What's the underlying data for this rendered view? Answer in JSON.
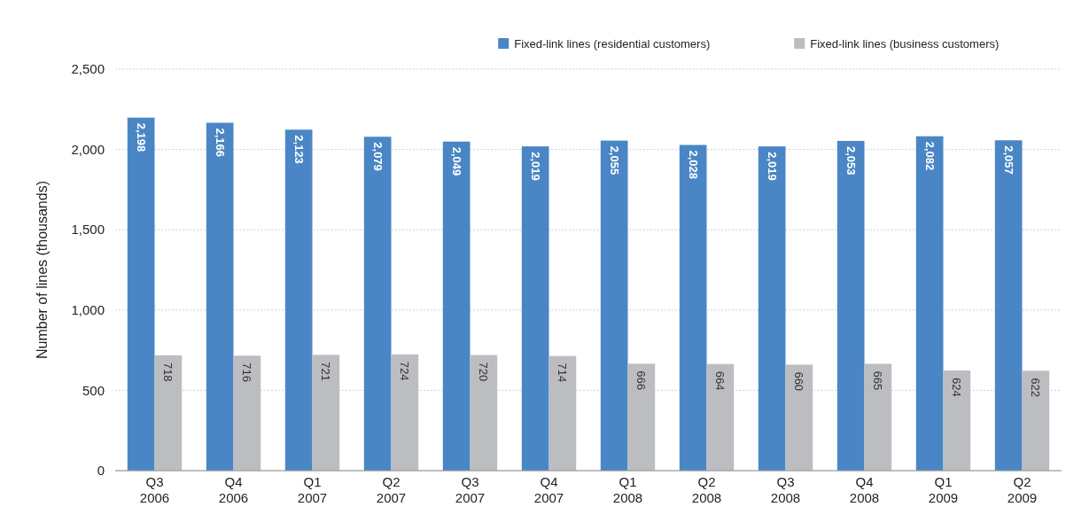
{
  "chart_data": {
    "type": "bar",
    "ylabel": "Number of lines (thousands)",
    "categories": [
      "Q3 2006",
      "Q4 2006",
      "Q1 2007",
      "Q2 2007",
      "Q3 2007",
      "Q4 2007",
      "Q1 2008",
      "Q2 2008",
      "Q3 2008",
      "Q4 2008",
      "Q1 2009",
      "Q2 2009"
    ],
    "series": [
      {
        "name": "Fixed-link lines (residential customers)",
        "color": "#4a86c5",
        "values": [
          2198,
          2166,
          2123,
          2079,
          2049,
          2019,
          2055,
          2028,
          2019,
          2053,
          2082,
          2057
        ],
        "value_labels": [
          "2,198",
          "2,166",
          "2,123",
          "2,079",
          "2,049",
          "2,019",
          "2,055",
          "2,028",
          "2,019",
          "2,053",
          "2,082",
          "2,057"
        ]
      },
      {
        "name": "Fixed-link lines (business customers)",
        "color": "#bcbdc0",
        "values": [
          718,
          716,
          721,
          724,
          720,
          714,
          666,
          664,
          660,
          665,
          624,
          622
        ],
        "value_labels": [
          "718",
          "716",
          "721",
          "724",
          "720",
          "714",
          "666",
          "664",
          "660",
          "665",
          "624",
          "622"
        ]
      }
    ],
    "ylim": [
      0,
      2500
    ],
    "yticks": [
      {
        "value": 0,
        "label": "0"
      },
      {
        "value": 500,
        "label": "500"
      },
      {
        "value": 1000,
        "label": "1,000"
      },
      {
        "value": 1500,
        "label": "1,500"
      },
      {
        "value": 2000,
        "label": "2,000"
      },
      {
        "value": 2500,
        "label": "2,500"
      }
    ],
    "grid": "y",
    "legend": "top right"
  }
}
